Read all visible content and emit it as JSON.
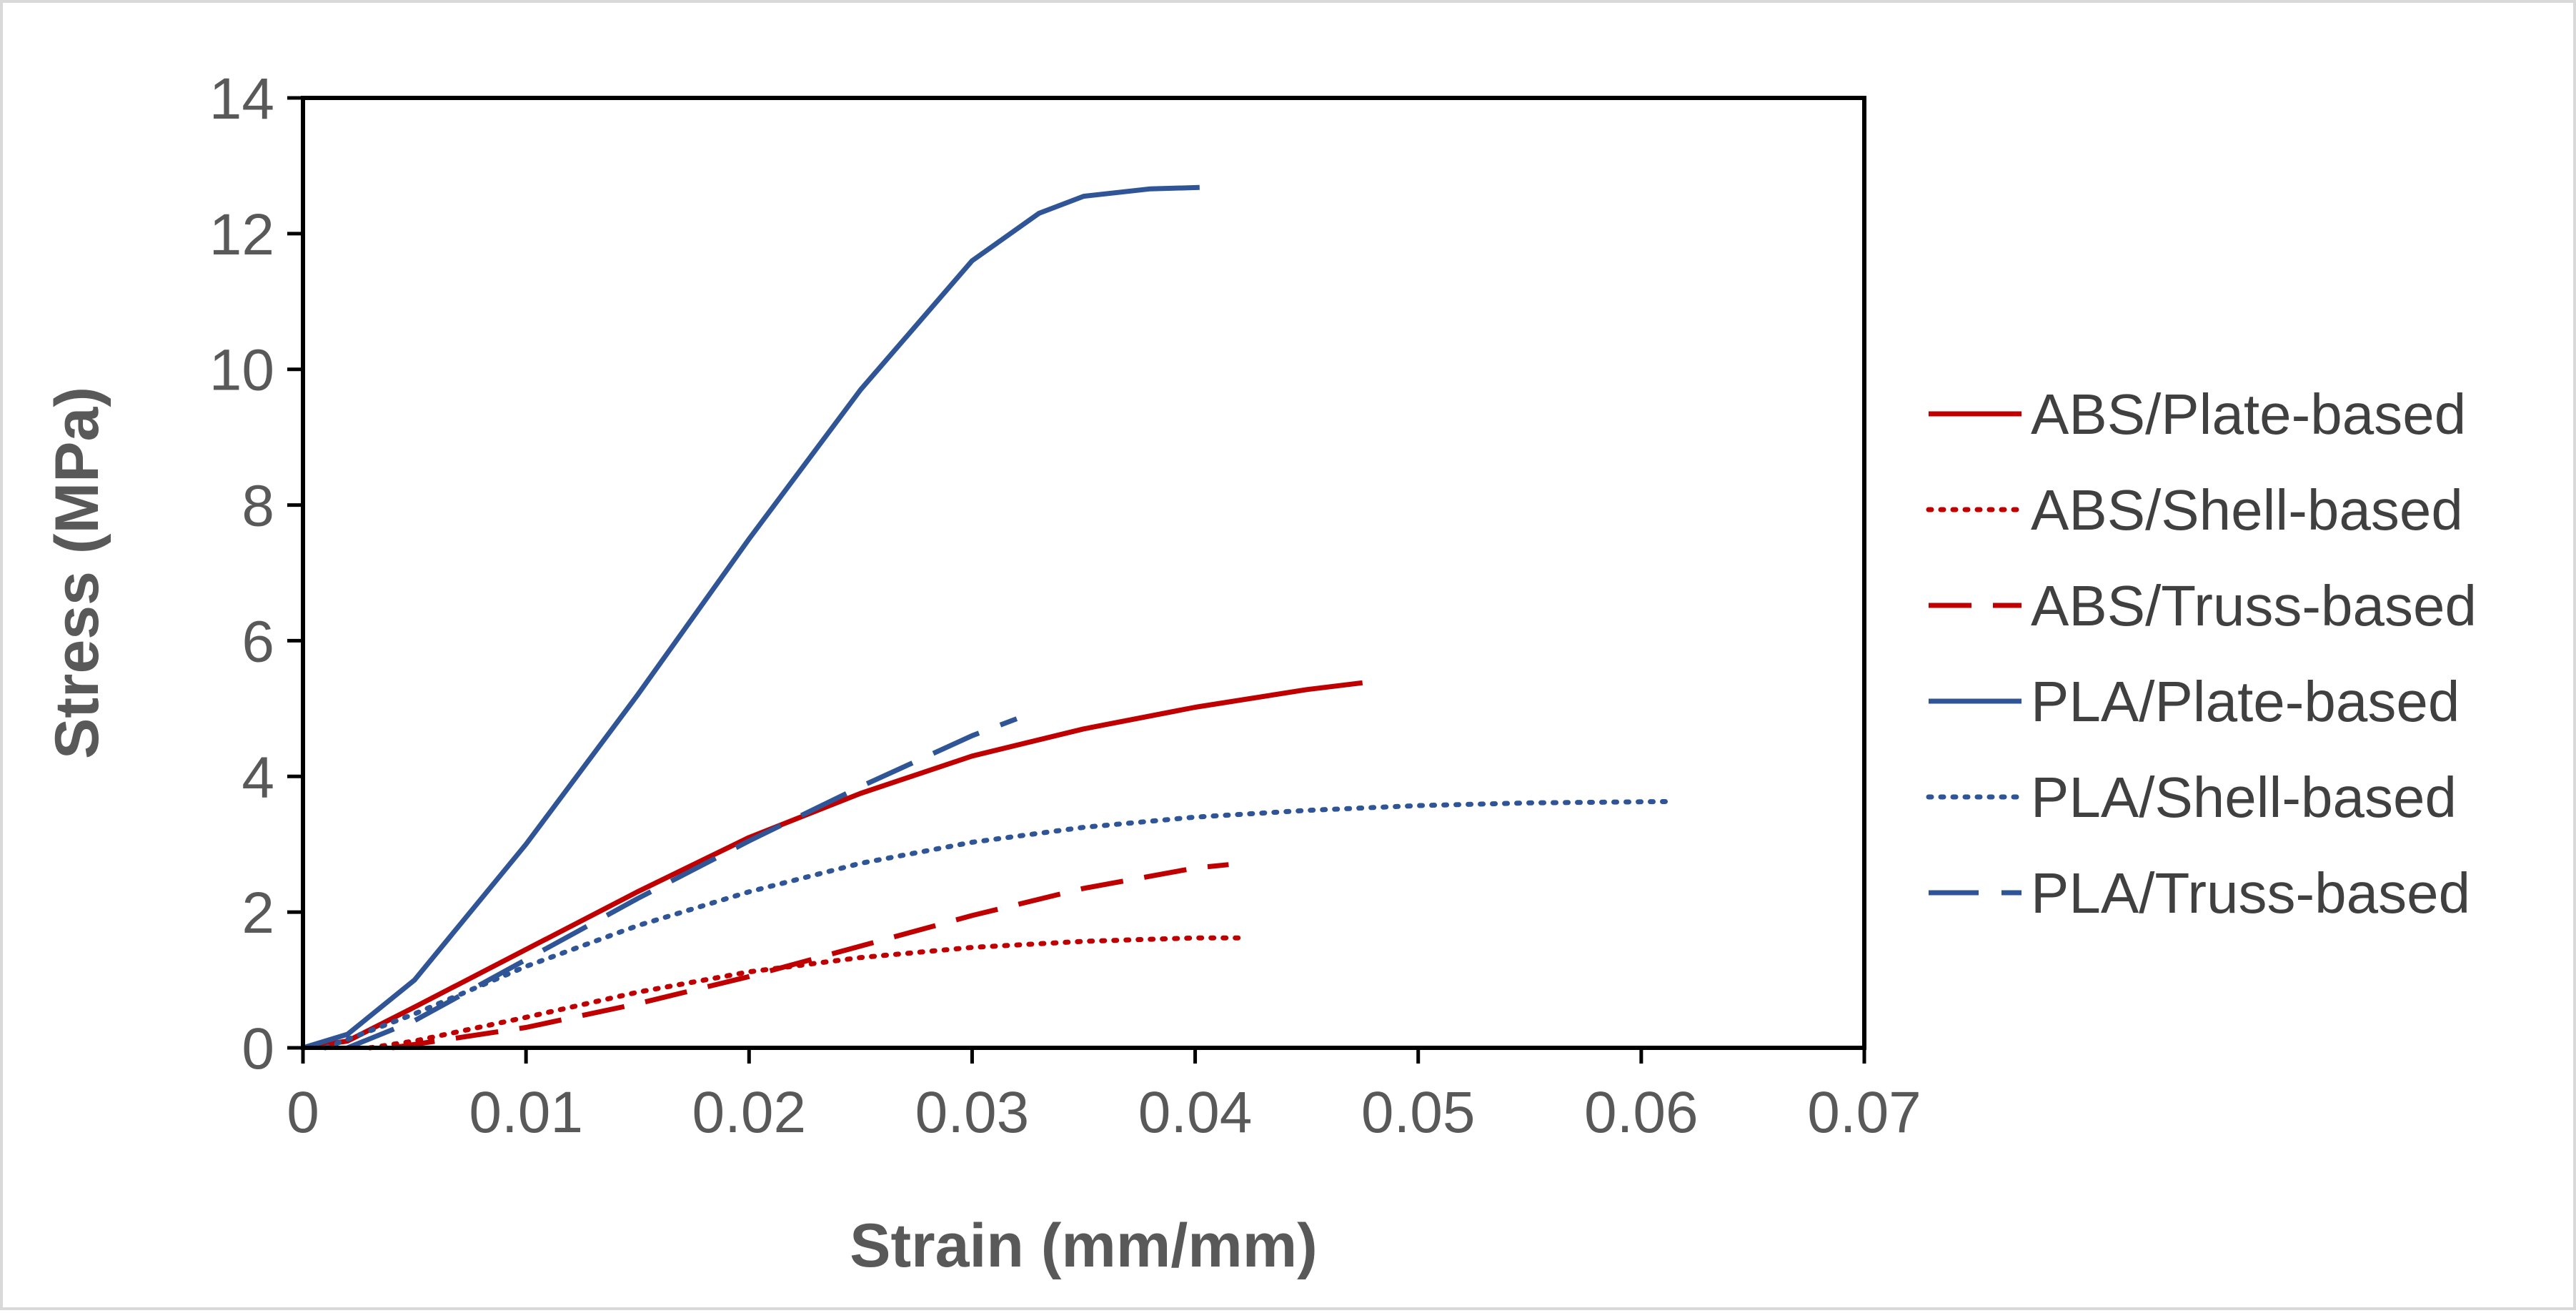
{
  "chart_data": {
    "type": "line",
    "title": "",
    "xlabel": "Strain (mm/mm)",
    "ylabel": "Stress (MPa)",
    "xlim": [
      0,
      0.07
    ],
    "ylim": [
      0,
      14
    ],
    "xticks": [
      0,
      0.01,
      0.02,
      0.03,
      0.04,
      0.05,
      0.06,
      0.07
    ],
    "xtick_labels": [
      "0",
      "0.01",
      "0.02",
      "0.03",
      "0.04",
      "0.05",
      "0.06",
      "0.07"
    ],
    "yticks": [
      0,
      2,
      4,
      6,
      8,
      10,
      12,
      14
    ],
    "ytick_labels": [
      "0",
      "2",
      "4",
      "6",
      "8",
      "10",
      "12",
      "14"
    ],
    "grid": false,
    "legend_position": "right",
    "series": [
      {
        "name": "ABS/Plate-based",
        "color": "#c00000",
        "dash": "solid",
        "points": [
          [
            0,
            0
          ],
          [
            0.002,
            0.1
          ],
          [
            0.005,
            0.6
          ],
          [
            0.01,
            1.45
          ],
          [
            0.015,
            2.3
          ],
          [
            0.02,
            3.1
          ],
          [
            0.025,
            3.75
          ],
          [
            0.03,
            4.3
          ],
          [
            0.035,
            4.7
          ],
          [
            0.04,
            5.02
          ],
          [
            0.045,
            5.28
          ],
          [
            0.0475,
            5.38
          ]
        ]
      },
      {
        "name": "ABS/Shell-based",
        "color": "#c00000",
        "dash": "dot",
        "points": [
          [
            0.003,
            0
          ],
          [
            0.005,
            0.1
          ],
          [
            0.01,
            0.45
          ],
          [
            0.015,
            0.82
          ],
          [
            0.02,
            1.12
          ],
          [
            0.025,
            1.33
          ],
          [
            0.03,
            1.48
          ],
          [
            0.035,
            1.57
          ],
          [
            0.04,
            1.62
          ],
          [
            0.042,
            1.62
          ]
        ]
      },
      {
        "name": "ABS/Truss-based",
        "color": "#c00000",
        "dash": "dash",
        "points": [
          [
            0.004,
            0
          ],
          [
            0.006,
            0.1
          ],
          [
            0.01,
            0.3
          ],
          [
            0.015,
            0.65
          ],
          [
            0.02,
            1.05
          ],
          [
            0.025,
            1.5
          ],
          [
            0.03,
            1.95
          ],
          [
            0.035,
            2.35
          ],
          [
            0.04,
            2.65
          ],
          [
            0.0415,
            2.7
          ]
        ]
      },
      {
        "name": "PLA/Plate-based",
        "color": "#2f5597",
        "dash": "solid",
        "points": [
          [
            0,
            0
          ],
          [
            0.002,
            0.2
          ],
          [
            0.005,
            1.0
          ],
          [
            0.01,
            3.0
          ],
          [
            0.015,
            5.2
          ],
          [
            0.02,
            7.5
          ],
          [
            0.025,
            9.7
          ],
          [
            0.03,
            11.6
          ],
          [
            0.033,
            12.3
          ],
          [
            0.035,
            12.55
          ],
          [
            0.038,
            12.66
          ],
          [
            0.0402,
            12.68
          ]
        ]
      },
      {
        "name": "PLA/Shell-based",
        "color": "#2f5597",
        "dash": "dot",
        "points": [
          [
            0.001,
            0
          ],
          [
            0.005,
            0.5
          ],
          [
            0.01,
            1.2
          ],
          [
            0.015,
            1.8
          ],
          [
            0.02,
            2.3
          ],
          [
            0.025,
            2.72
          ],
          [
            0.03,
            3.03
          ],
          [
            0.035,
            3.25
          ],
          [
            0.04,
            3.4
          ],
          [
            0.045,
            3.5
          ],
          [
            0.05,
            3.57
          ],
          [
            0.055,
            3.61
          ],
          [
            0.0613,
            3.63
          ]
        ]
      },
      {
        "name": "PLA/Truss-based",
        "color": "#2f5597",
        "dash": "longdash",
        "points": [
          [
            0.002,
            0
          ],
          [
            0.005,
            0.4
          ],
          [
            0.01,
            1.3
          ],
          [
            0.015,
            2.2
          ],
          [
            0.02,
            3.05
          ],
          [
            0.025,
            3.85
          ],
          [
            0.028,
            4.3
          ],
          [
            0.03,
            4.6
          ],
          [
            0.032,
            4.85
          ]
        ]
      }
    ]
  }
}
